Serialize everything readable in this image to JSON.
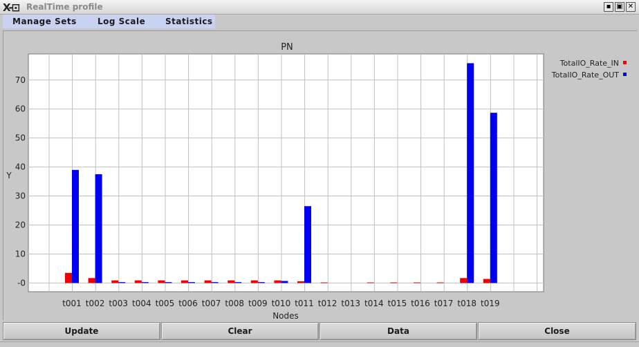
{
  "window": {
    "logo_text": "X-⊡",
    "title": "RealTime profile"
  },
  "window_controls": {
    "minimize": "▪",
    "maximize": "▣",
    "close": "✕"
  },
  "menu": {
    "items": [
      "Manage Sets",
      "Log Scale",
      "Statistics"
    ]
  },
  "buttons": {
    "update": "Update",
    "clear": "Clear",
    "data": "Data",
    "close": "Close"
  },
  "chart_data": {
    "type": "bar",
    "title": "PN",
    "xlabel": "Nodes",
    "ylabel": "Y",
    "ylim": [
      -3,
      79
    ],
    "yticks": [
      {
        "value": 0,
        "label": "-0"
      },
      {
        "value": 10,
        "label": "10"
      },
      {
        "value": 20,
        "label": "20"
      },
      {
        "value": 30,
        "label": "30"
      },
      {
        "value": 40,
        "label": "40"
      },
      {
        "value": 50,
        "label": "50"
      },
      {
        "value": 60,
        "label": "60"
      },
      {
        "value": 70,
        "label": "70"
      }
    ],
    "grid": true,
    "legend_position": "right",
    "categories": [
      "t001",
      "t002",
      "t003",
      "t004",
      "t005",
      "t006",
      "t007",
      "t008",
      "t009",
      "t010",
      "t011",
      "t012",
      "t013",
      "t014",
      "t015",
      "t016",
      "t017",
      "t018",
      "t019"
    ],
    "series": [
      {
        "name": "TotalIO_Rate_IN",
        "color": "#f00000",
        "values": [
          3.5,
          1.7,
          0.9,
          0.9,
          0.9,
          0.9,
          0.9,
          0.9,
          0.9,
          0.9,
          0.6,
          0.2,
          0,
          0.2,
          0.2,
          0.2,
          0.2,
          1.7,
          1.4
        ]
      },
      {
        "name": "TotalIO_Rate_OUT",
        "color": "#0000f0",
        "values": [
          39,
          37.5,
          0.3,
          0.3,
          0.3,
          0.3,
          0.3,
          0.3,
          0.3,
          0.7,
          26.5,
          0,
          0,
          0,
          0,
          0,
          0,
          75.8,
          58.7
        ]
      }
    ]
  }
}
